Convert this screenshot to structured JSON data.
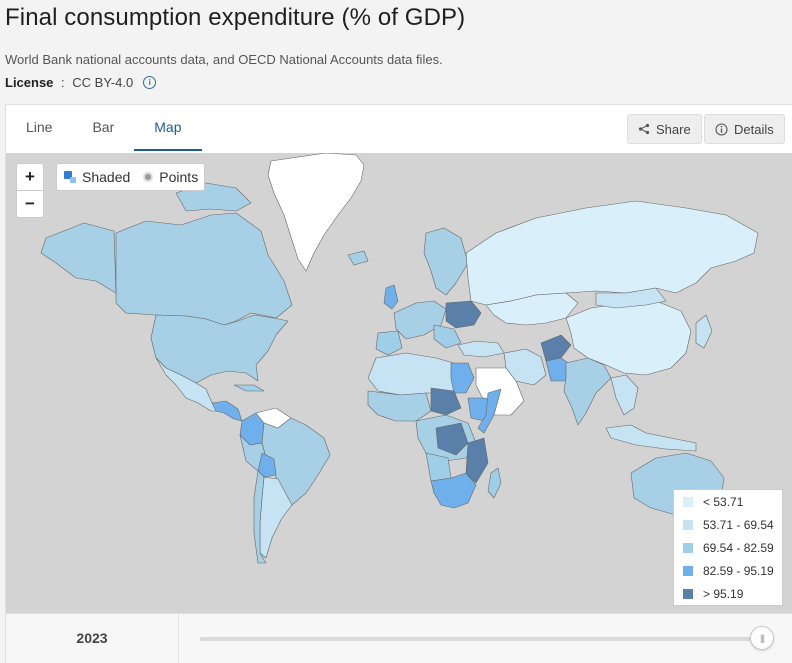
{
  "header": {
    "title": "Final consumption expenditure (% of GDP)",
    "source": "World Bank national accounts data, and OECD National Accounts data files.",
    "license_label": "License",
    "license_sep": " : ",
    "license_value": "CC BY-4.0",
    "info_glyph": "i"
  },
  "tabs": [
    {
      "label": "Line",
      "active": false
    },
    {
      "label": "Bar",
      "active": false
    },
    {
      "label": "Map",
      "active": true
    }
  ],
  "actions": {
    "share_label": "Share",
    "details_label": "Details"
  },
  "map_controls": {
    "zoom_in": "+",
    "zoom_out": "−",
    "mode_shaded": "Shaded",
    "mode_points": "Points"
  },
  "legend": [
    {
      "label": "< 53.71",
      "color": "#d9effa"
    },
    {
      "label": "53.71 - 69.54",
      "color": "#c6e3f3"
    },
    {
      "label": "69.54 - 82.59",
      "color": "#9fcfe8"
    },
    {
      "label": "82.59 - 95.19",
      "color": "#6fb0ec"
    },
    {
      "label": "> 95.19",
      "color": "#5a7fa8"
    }
  ],
  "colors": {
    "ocean": "#d3d3d3",
    "no_data": "#ffffff",
    "accent": "#1d5c96"
  },
  "timeline": {
    "year": "2023",
    "thumb_glyph": "|||"
  }
}
